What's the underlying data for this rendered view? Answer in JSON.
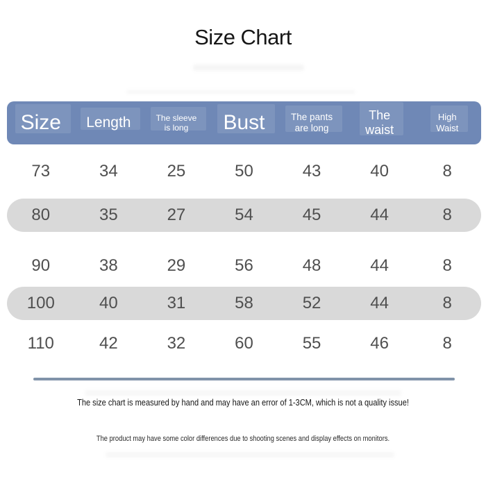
{
  "title": "Size Chart",
  "table": {
    "headers": [
      {
        "id": "size",
        "lines": [
          "Size"
        ]
      },
      {
        "id": "length",
        "lines": [
          "Length"
        ]
      },
      {
        "id": "sleeve-length",
        "lines": [
          "The sleeve",
          "is long"
        ]
      },
      {
        "id": "bust",
        "lines": [
          "Bust"
        ]
      },
      {
        "id": "pants-length",
        "lines": [
          "The pants",
          "are long"
        ]
      },
      {
        "id": "waist",
        "lines": [
          "The",
          "waist"
        ]
      },
      {
        "id": "high-waist",
        "lines": [
          "High",
          "Waist"
        ]
      }
    ],
    "rows": [
      [
        "73",
        "34",
        "25",
        "50",
        "43",
        "40",
        "8"
      ],
      [
        "80",
        "35",
        "27",
        "54",
        "45",
        "44",
        "8"
      ],
      [
        "90",
        "38",
        "29",
        "56",
        "48",
        "44",
        "8"
      ],
      [
        "100",
        "40",
        "31",
        "58",
        "52",
        "44",
        "8"
      ],
      [
        "110",
        "42",
        "32",
        "60",
        "55",
        "46",
        "8"
      ]
    ]
  },
  "notes": {
    "measurement": "The size chart is measured by hand and may have an error of 1-3CM, which is not a quality issue!",
    "color": "The product may have some color differences due to shooting scenes and display effects on monitors."
  },
  "colors": {
    "header_bg": "#6f88b6",
    "header_highlight": "#7e94c3",
    "header_text": "#ffffff",
    "row_alt_bg": "#d9d9d9",
    "data_text": "#4f4f4f",
    "divider": "#8093a9",
    "title_text": "#161616"
  },
  "chart_data": {
    "type": "table",
    "title": "Size Chart",
    "columns": [
      "Size",
      "Length",
      "The sleeve is long",
      "Bust",
      "The pants are long",
      "The waist",
      "High Waist"
    ],
    "rows": [
      [
        73,
        34,
        25,
        50,
        43,
        40,
        8
      ],
      [
        80,
        35,
        27,
        54,
        45,
        44,
        8
      ],
      [
        90,
        38,
        29,
        56,
        48,
        44,
        8
      ],
      [
        100,
        40,
        31,
        58,
        52,
        44,
        8
      ],
      [
        110,
        42,
        32,
        60,
        55,
        46,
        8
      ]
    ],
    "notes": [
      "The size chart is measured by hand and may have an error of 1-3CM, which is not a quality issue!",
      "The product may have some color differences due to shooting scenes and display effects on monitors."
    ]
  }
}
